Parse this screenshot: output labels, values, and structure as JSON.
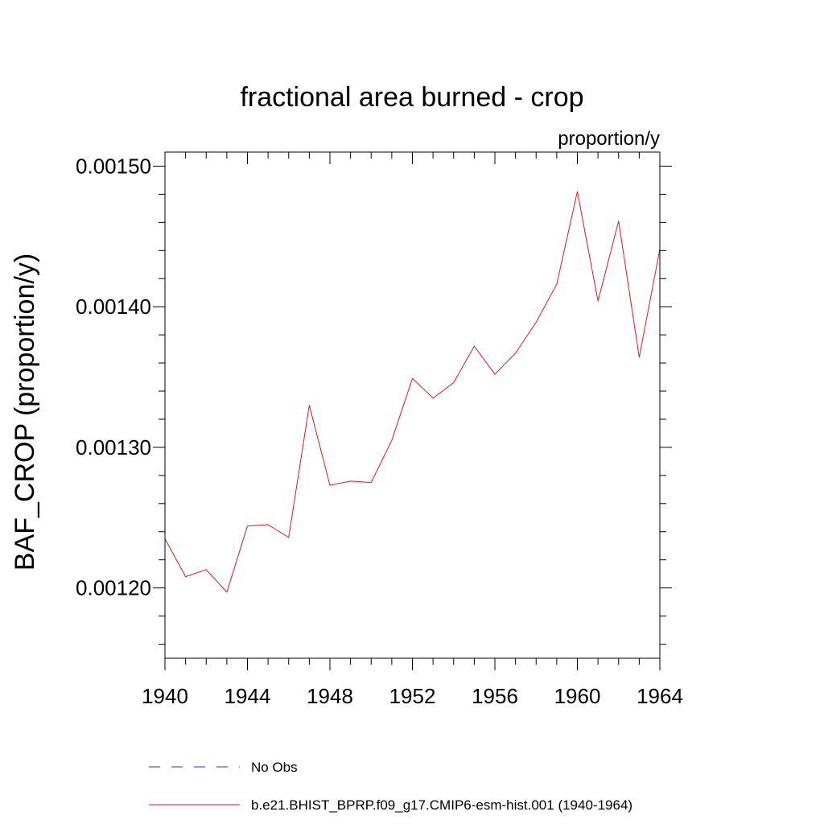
{
  "chart_data": {
    "type": "line",
    "title": "fractional area burned - crop",
    "units_label": "proportion/y",
    "xlabel": "",
    "ylabel": "BAF_CROP  (proportion/y)",
    "xlim": [
      1940,
      1964
    ],
    "ylim": [
      0.00115,
      0.00151
    ],
    "x_major_ticks": [
      1940,
      1944,
      1948,
      1952,
      1956,
      1960,
      1964
    ],
    "x_minor_step": 1,
    "y_major_ticks": [
      "0.00120",
      "0.00130",
      "0.00140",
      "0.00150"
    ],
    "y_minor_step": 2e-05,
    "grid": false,
    "legend_position": "bottom",
    "series": [
      {
        "name": "No Obs",
        "color": "#3a2fa0",
        "dash": "dashed",
        "x": [],
        "values": []
      },
      {
        "name": "b.e21.BHIST_BPRP.f09_g17.CMIP6-esm-hist.001 (1940-1964)",
        "color": "#e8141b",
        "dash": "solid",
        "x": [
          1940,
          1941,
          1942,
          1943,
          1944,
          1945,
          1946,
          1947,
          1948,
          1949,
          1950,
          1951,
          1952,
          1953,
          1954,
          1955,
          1956,
          1957,
          1958,
          1959,
          1960,
          1961,
          1962,
          1963,
          1964
        ],
        "values": [
          0.001235,
          0.001208,
          0.001213,
          0.001197,
          0.001244,
          0.001245,
          0.001236,
          0.00133,
          0.001273,
          0.001276,
          0.001275,
          0.001305,
          0.001349,
          0.001335,
          0.001346,
          0.001372,
          0.001352,
          0.001367,
          0.001389,
          0.001416,
          0.001482,
          0.001404,
          0.001461,
          0.001364,
          0.001441
        ]
      }
    ]
  }
}
